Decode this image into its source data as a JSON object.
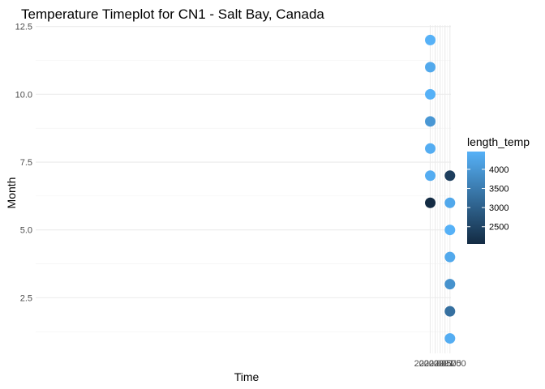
{
  "chart_data": {
    "type": "scatter",
    "title": "Temperature Timeplot for CN1 - Salt Bay, Canada",
    "xlabel": "Time",
    "ylabel": "Month",
    "xlim": [
      1999.95,
      2021.05
    ],
    "ylim": [
      0.45,
      12.55
    ],
    "x_ticks": [
      2020.0,
      2020.25,
      2020.5,
      2020.75,
      2021.0
    ],
    "x_tick_labels": [
      "2020.00",
      "2020.25",
      "2020.50",
      "2020.75",
      "2021.00"
    ],
    "y_ticks": [
      2.5,
      5.0,
      7.5,
      10.0,
      12.5
    ],
    "y_tick_labels": [
      "2.5",
      "5.0",
      "7.5",
      "10.0",
      "12.5"
    ],
    "grid": true,
    "legend": {
      "title": "length_temp",
      "placement": "right",
      "range": [
        2050,
        4464
      ],
      "ticks": [
        2500,
        3000,
        3500,
        4000
      ],
      "tick_labels": [
        "2500",
        "3000",
        "3500",
        "4000"
      ],
      "color_low": "#132B43",
      "color_high": "#56B1F7"
    },
    "points": [
      {
        "x": 2020.0,
        "y": 12,
        "length_temp": 4464
      },
      {
        "x": 2020.0,
        "y": 11,
        "length_temp": 4320
      },
      {
        "x": 2020.0,
        "y": 10,
        "length_temp": 4464
      },
      {
        "x": 2020.0,
        "y": 9,
        "length_temp": 4000
      },
      {
        "x": 2020.0,
        "y": 8,
        "length_temp": 4400
      },
      {
        "x": 2020.0,
        "y": 7,
        "length_temp": 4380
      },
      {
        "x": 2020.0,
        "y": 6,
        "length_temp": 2050
      },
      {
        "x": 2021.0,
        "y": 7,
        "length_temp": 2400
      },
      {
        "x": 2021.0,
        "y": 6,
        "length_temp": 4300
      },
      {
        "x": 2021.0,
        "y": 5,
        "length_temp": 4464
      },
      {
        "x": 2021.0,
        "y": 4,
        "length_temp": 4320
      },
      {
        "x": 2021.0,
        "y": 3,
        "length_temp": 3900
      },
      {
        "x": 2021.0,
        "y": 2,
        "length_temp": 3300
      },
      {
        "x": 2021.0,
        "y": 1,
        "length_temp": 4400
      }
    ]
  }
}
